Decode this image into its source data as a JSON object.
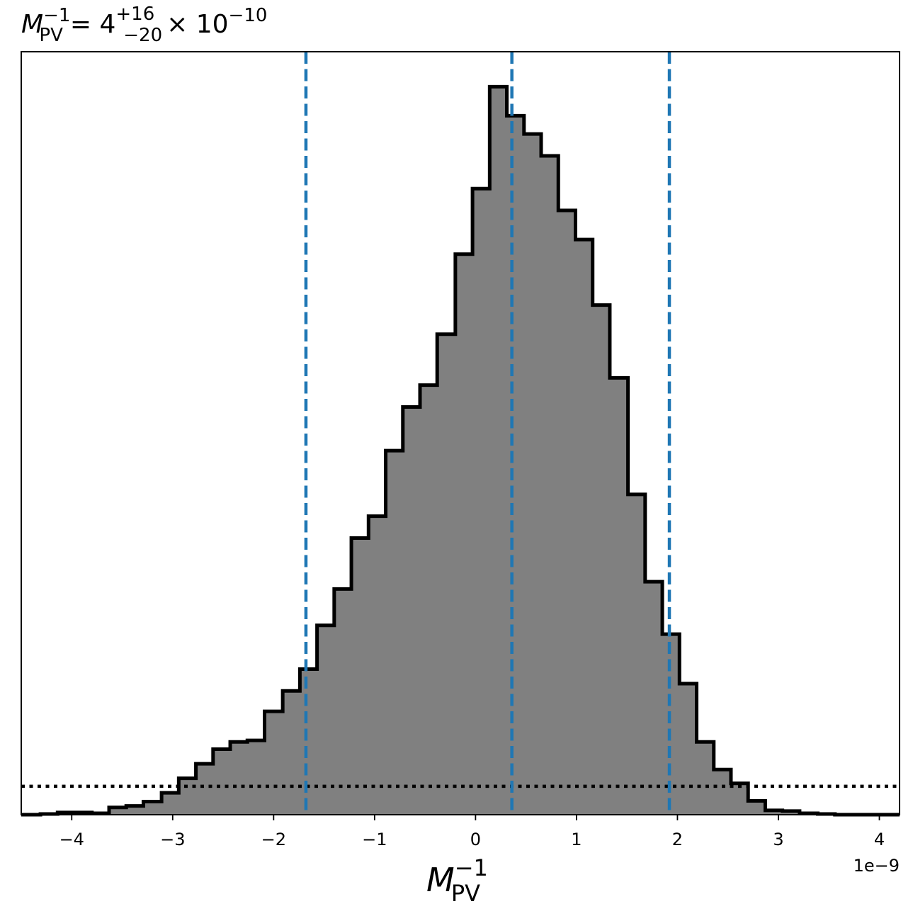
{
  "chart_data": {
    "type": "histogram",
    "title": {
      "symbol": "M",
      "sub": "PV",
      "sup": "−1",
      "equals": "= 4",
      "upper_err": "+16",
      "lower_err": "−20",
      "times": "× 10",
      "exp": "−10"
    },
    "xlabel": {
      "symbol": "M",
      "sub": "PV",
      "sup": "−1"
    },
    "offset_text": "1e−9",
    "xlim": [
      -4.5,
      4.2
    ],
    "ylim": [
      0,
      1.048
    ],
    "x_ticks": [
      -4,
      -3,
      -2,
      -1,
      0,
      1,
      2,
      3,
      4
    ],
    "x_tick_labels": [
      "−4",
      "−3",
      "−2",
      "−1",
      "0",
      "1",
      "2",
      "3",
      "4"
    ],
    "show_y_ticks": false,
    "fill_color": "#808080",
    "edge_color": "#000000",
    "bin_edges": [
      -4.5,
      -4.31,
      -4.14,
      -3.97,
      -3.8,
      -3.63,
      -3.46,
      -3.29,
      -3.11,
      -2.94,
      -2.77,
      -2.6,
      -2.43,
      -2.26,
      -2.09,
      -1.91,
      -1.74,
      -1.57,
      -1.4,
      -1.23,
      -1.06,
      -0.89,
      -0.72,
      -0.55,
      -0.38,
      -0.2,
      -0.03,
      0.14,
      0.31,
      0.48,
      0.65,
      0.82,
      0.99,
      1.16,
      1.33,
      1.51,
      1.68,
      1.85,
      2.02,
      2.19,
      2.36,
      2.53,
      2.7,
      2.87,
      3.04,
      3.21,
      3.39,
      3.56,
      3.73,
      3.9,
      4.07,
      4.2
    ],
    "counts": [
      0.0,
      0.001,
      0.003,
      0.003,
      0.002,
      0.01,
      0.012,
      0.018,
      0.03,
      0.05,
      0.07,
      0.09,
      0.1,
      0.102,
      0.142,
      0.17,
      0.2,
      0.26,
      0.31,
      0.38,
      0.41,
      0.5,
      0.56,
      0.59,
      0.66,
      0.77,
      0.86,
      1.0,
      0.96,
      0.935,
      0.905,
      0.83,
      0.79,
      0.7,
      0.6,
      0.44,
      0.32,
      0.248,
      0.18,
      0.1,
      0.062,
      0.043,
      0.019,
      0.006,
      0.005,
      0.002,
      0.001,
      0.0,
      0.0,
      0.0,
      0.0
    ],
    "vlines": [
      {
        "x": -1.68,
        "style": "dashed",
        "color": "#1f77b4"
      },
      {
        "x": 0.36,
        "style": "dashed",
        "color": "#1f77b4"
      },
      {
        "x": 1.92,
        "style": "dashed",
        "color": "#1f77b4"
      }
    ],
    "hline": {
      "y": 0.039,
      "style": "dotted",
      "color": "#000000"
    }
  }
}
